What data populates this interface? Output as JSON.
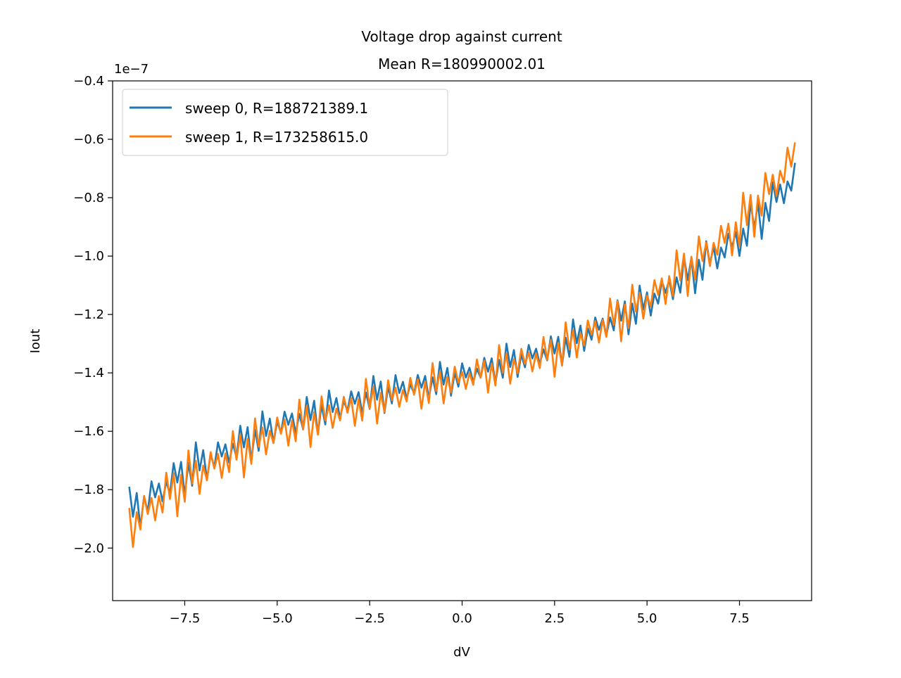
{
  "chart_data": {
    "type": "line",
    "title": "Voltage drop against current",
    "subtitle": "Mean R=180990002.01",
    "xlabel": "dV",
    "ylabel": "Iout",
    "y_offset_label": "1e−7",
    "xlim": [
      -9.45,
      9.45
    ],
    "ylim": [
      -2.18,
      -0.4
    ],
    "x_ticks": [
      -7.5,
      -5.0,
      -2.5,
      0.0,
      2.5,
      5.0,
      7.5
    ],
    "x_tick_labels": [
      "−7.5",
      "−5.0",
      "−2.5",
      "0.0",
      "2.5",
      "5.0",
      "7.5"
    ],
    "y_ticks": [
      -2.0,
      -1.8,
      -1.6,
      -1.4,
      -1.2,
      -1.0,
      -0.8,
      -0.6,
      -0.4
    ],
    "y_tick_labels": [
      "−2.0",
      "−1.8",
      "−1.6",
      "−1.4",
      "−1.2",
      "−1.0",
      "−0.8",
      "−0.6",
      "−0.4"
    ],
    "grid": false,
    "legend": "top-left",
    "x_range": [
      -9.0,
      9.0
    ],
    "x_step": 0.1,
    "series": [
      {
        "name": "sweep 0, R=188721389.1",
        "color": "#1f77b4",
        "trend_knots": {
          "x": [
            -9,
            -7.5,
            -5,
            -2.5,
            0,
            2.5,
            5,
            7.5,
            9
          ],
          "y": [
            -1.88,
            -1.74,
            -1.58,
            -1.48,
            -1.41,
            -1.32,
            -1.16,
            -0.94,
            -0.73
          ]
        },
        "oscillation_amplitude": 0.075
      },
      {
        "name": "sweep 1, R=173258615.0",
        "color": "#ff7f0e",
        "trend_knots": {
          "x": [
            -9,
            -7.5,
            -5,
            -2.5,
            0,
            2.5,
            5,
            7.5,
            9
          ],
          "y": [
            -1.92,
            -1.77,
            -1.6,
            -1.5,
            -1.42,
            -1.33,
            -1.15,
            -0.9,
            -0.66
          ]
        },
        "oscillation_amplitude": 0.09
      }
    ]
  }
}
